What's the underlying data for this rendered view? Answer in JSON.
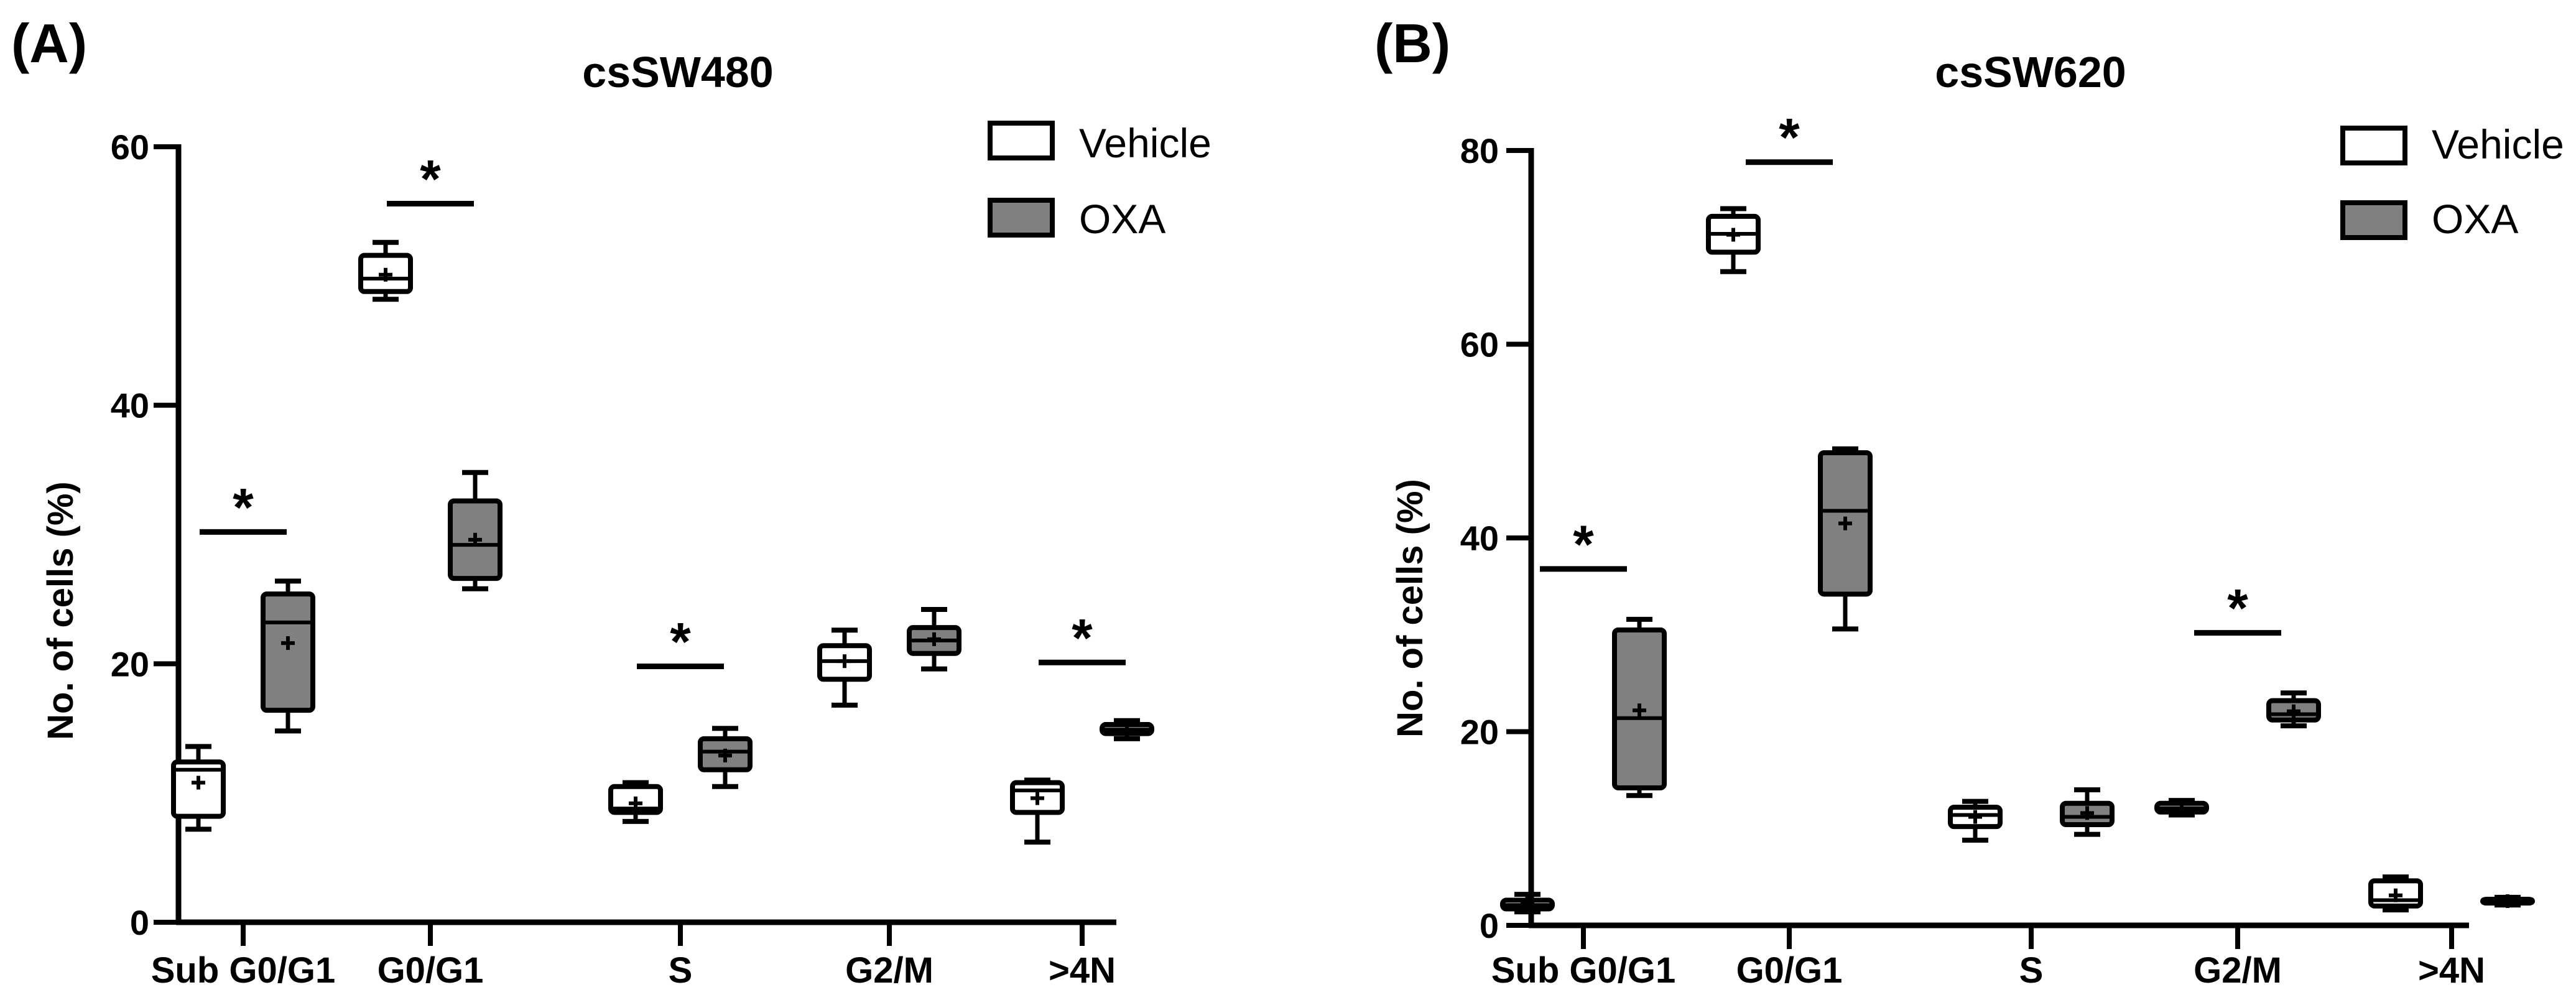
{
  "figure": {
    "panel_letters": [
      "(A)",
      "(B)"
    ]
  },
  "legend": {
    "items": [
      {
        "label": "Vehicle",
        "fill": "#ffffff"
      },
      {
        "label": "OXA",
        "fill": "#808080"
      }
    ]
  },
  "colors": {
    "vehicle": "#ffffff",
    "oxa": "#808080",
    "stroke": "#000000"
  },
  "chart_data": [
    {
      "type": "boxplot",
      "panel": "(A)",
      "title": "csSW480",
      "ylabel": "No. of cells (%)",
      "xlabel": "",
      "ylim": [
        0,
        60
      ],
      "yticks": [
        0,
        20,
        40,
        60
      ],
      "grid": false,
      "legend_position": "top-right",
      "categories": [
        "Sub G0/G1",
        "G0/G1",
        "S",
        "G2/M",
        ">4N"
      ],
      "series": [
        {
          "name": "Vehicle",
          "boxes": [
            {
              "min": 7.2,
              "q1": 8.2,
              "median": 11.8,
              "q3": 12.4,
              "max": 13.6,
              "mean": 10.8
            },
            {
              "min": 48.2,
              "q1": 48.8,
              "median": 49.8,
              "q3": 51.6,
              "max": 52.6,
              "mean": 50.1
            },
            {
              "min": 7.8,
              "q1": 8.5,
              "median": 8.8,
              "q3": 10.5,
              "max": 10.8,
              "mean": 9.2
            },
            {
              "min": 16.8,
              "q1": 18.8,
              "median": 20.2,
              "q3": 21.4,
              "max": 22.6,
              "mean": 20.2
            },
            {
              "min": 6.2,
              "q1": 8.5,
              "median": 10.2,
              "q3": 10.8,
              "max": 11.0,
              "mean": 9.6
            }
          ]
        },
        {
          "name": "OXA",
          "boxes": [
            {
              "min": 14.8,
              "q1": 16.4,
              "median": 23.2,
              "q3": 25.4,
              "max": 26.4,
              "mean": 21.6
            },
            {
              "min": 25.8,
              "q1": 26.6,
              "median": 29.2,
              "q3": 32.6,
              "max": 34.8,
              "mean": 29.6
            },
            {
              "min": 10.5,
              "q1": 11.8,
              "median": 13.2,
              "q3": 14.2,
              "max": 15.0,
              "mean": 12.9
            },
            {
              "min": 19.6,
              "q1": 20.8,
              "median": 21.8,
              "q3": 22.8,
              "max": 24.2,
              "mean": 21.9
            },
            {
              "min": 14.2,
              "q1": 14.6,
              "median": 14.9,
              "q3": 15.3,
              "max": 15.6,
              "mean": 14.9
            }
          ]
        }
      ],
      "annotations": [
        {
          "text": "*",
          "category": "Sub G0/G1",
          "y": 30.2
        },
        {
          "text": "*",
          "category": "G0/G1",
          "y": 55.6
        },
        {
          "text": "*",
          "category": "S",
          "y": 19.8
        },
        {
          "text": "*",
          "category": ">4N",
          "y": 20.1
        }
      ]
    },
    {
      "type": "boxplot",
      "panel": "(B)",
      "title": "csSW620",
      "ylabel": "No. of cells (%)",
      "xlabel": "",
      "ylim": [
        0,
        80
      ],
      "yticks": [
        0,
        20,
        40,
        60,
        80
      ],
      "grid": false,
      "legend_position": "top-right",
      "categories": [
        "Sub G0/G1",
        "G0/G1",
        "S",
        "G2/M",
        ">4N"
      ],
      "series": [
        {
          "name": "Vehicle",
          "boxes": [
            {
              "min": 1.4,
              "q1": 1.7,
              "median": 2.1,
              "q3": 2.6,
              "max": 3.2,
              "mean": 2.3
            },
            {
              "min": 67.5,
              "q1": 69.5,
              "median": 71.4,
              "q3": 73.2,
              "max": 74.0,
              "mean": 71.3
            },
            {
              "min": 8.8,
              "q1": 10.2,
              "median": 11.4,
              "q3": 12.2,
              "max": 12.8,
              "mean": 11.2
            },
            {
              "min": 11.4,
              "q1": 11.7,
              "median": 12.1,
              "q3": 12.6,
              "max": 12.9,
              "mean": 12.1
            },
            {
              "min": 1.6,
              "q1": 2.0,
              "median": 2.6,
              "q3": 4.6,
              "max": 5.0,
              "mean": 3.1
            }
          ]
        },
        {
          "name": "OXA",
          "boxes": [
            {
              "min": 13.4,
              "q1": 14.2,
              "median": 21.4,
              "q3": 30.5,
              "max": 31.6,
              "mean": 22.2
            },
            {
              "min": 30.6,
              "q1": 34.2,
              "median": 42.8,
              "q3": 48.8,
              "max": 49.2,
              "mean": 41.5
            },
            {
              "min": 9.4,
              "q1": 10.4,
              "median": 11.2,
              "q3": 12.6,
              "max": 14.0,
              "mean": 11.6
            },
            {
              "min": 20.6,
              "q1": 21.2,
              "median": 21.8,
              "q3": 23.2,
              "max": 24.0,
              "mean": 22.1
            },
            {
              "min": 2.1,
              "q1": 2.3,
              "median": 2.5,
              "q3": 2.7,
              "max": 2.9,
              "mean": 2.5
            }
          ]
        }
      ],
      "annotations": [
        {
          "text": "*",
          "category": "Sub G0/G1",
          "y": 36.8
        },
        {
          "text": "*",
          "category": "G0/G1",
          "y": 78.8
        },
        {
          "text": "*",
          "category": "G2/M",
          "y": 30.2
        }
      ]
    }
  ]
}
